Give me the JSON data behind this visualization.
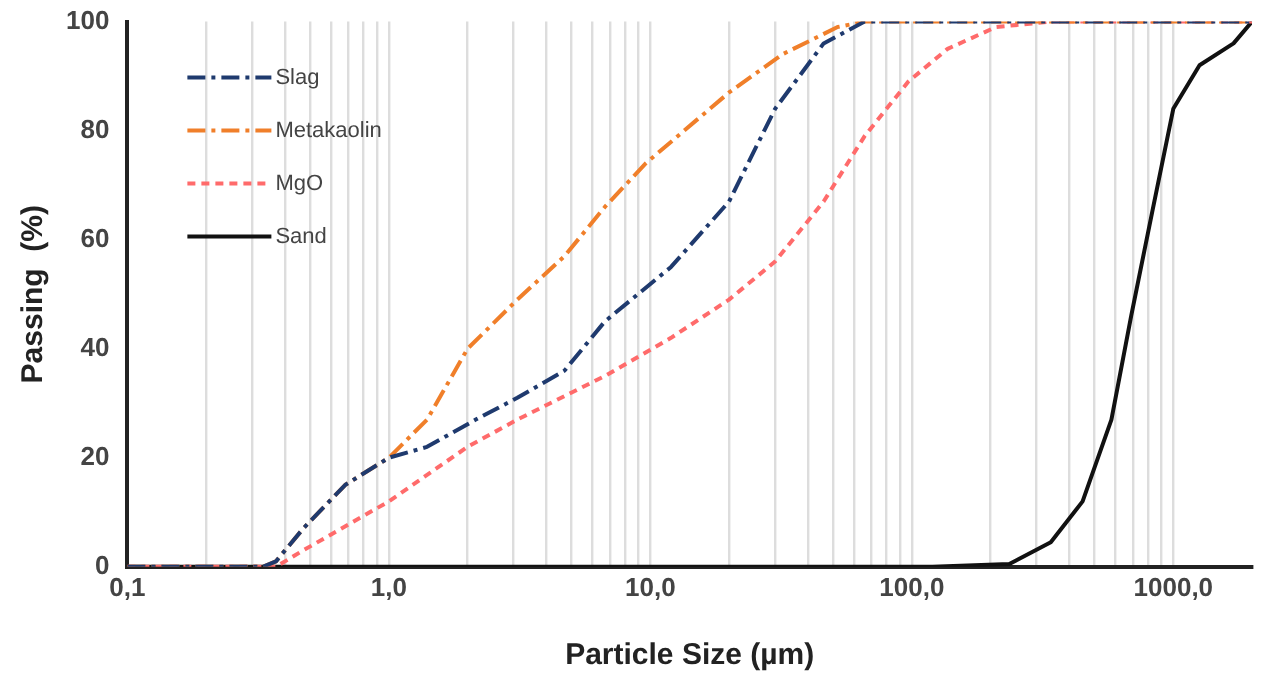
{
  "chart_data": {
    "type": "line",
    "xlabel": "Particle Size (µm)",
    "ylabel": "Passing  (%)",
    "log": "x",
    "grid": "x",
    "legend": "top left",
    "marker": "none",
    "xlim": [
      0.1,
      2000
    ],
    "ylim": [
      0,
      100
    ],
    "xticks": [
      {
        "value": 0.1,
        "label": "0,1"
      },
      {
        "value": 0.2,
        "label": null
      },
      {
        "value": 0.3,
        "label": null
      },
      {
        "value": 0.4,
        "label": null
      },
      {
        "value": 0.5,
        "label": null
      },
      {
        "value": 0.6,
        "label": null
      },
      {
        "value": 0.7,
        "label": null
      },
      {
        "value": 0.8,
        "label": null
      },
      {
        "value": 0.9,
        "label": null
      },
      {
        "value": 1,
        "label": "1,0"
      },
      {
        "value": 2,
        "label": null
      },
      {
        "value": 3,
        "label": null
      },
      {
        "value": 4,
        "label": null
      },
      {
        "value": 5,
        "label": null
      },
      {
        "value": 6,
        "label": null
      },
      {
        "value": 7,
        "label": null
      },
      {
        "value": 8,
        "label": null
      },
      {
        "value": 9,
        "label": null
      },
      {
        "value": 10,
        "label": "10,0"
      },
      {
        "value": 20,
        "label": null
      },
      {
        "value": 30,
        "label": null
      },
      {
        "value": 40,
        "label": null
      },
      {
        "value": 50,
        "label": null
      },
      {
        "value": 60,
        "label": null
      },
      {
        "value": 70,
        "label": null
      },
      {
        "value": 80,
        "label": null
      },
      {
        "value": 90,
        "label": null
      },
      {
        "value": 100,
        "label": "100,0"
      },
      {
        "value": 200,
        "label": null
      },
      {
        "value": 300,
        "label": null
      },
      {
        "value": 400,
        "label": null
      },
      {
        "value": 500,
        "label": null
      },
      {
        "value": 600,
        "label": null
      },
      {
        "value": 700,
        "label": null
      },
      {
        "value": 800,
        "label": null
      },
      {
        "value": 900,
        "label": null
      },
      {
        "value": 1000,
        "label": "1000,0"
      }
    ],
    "yticks": [
      0,
      20,
      40,
      60,
      80,
      100
    ],
    "series": [
      {
        "name": "Slag",
        "color": "#1f3a6e",
        "line_style": "dashed",
        "x": [
          0.1,
          0.33,
          0.37,
          0.47,
          0.68,
          1.0,
          1.4,
          2.15,
          3.1,
          4.7,
          6.7,
          12,
          20,
          30,
          46,
          66,
          2000
        ],
        "values": [
          0,
          0,
          1,
          7,
          15,
          20,
          22,
          27,
          31,
          36,
          45,
          55,
          67,
          84,
          96,
          100,
          100
        ]
      },
      {
        "name": "Metakaolin",
        "color": "#f07f2a",
        "line_style": "dashed",
        "x": [
          0.1,
          0.33,
          0.37,
          0.47,
          0.68,
          1.0,
          1.4,
          2.0,
          3.1,
          4.7,
          6.7,
          9.6,
          20,
          32,
          52,
          66,
          2000
        ],
        "values": [
          0,
          0,
          1,
          7,
          15,
          20,
          27,
          40,
          49,
          57,
          66,
          74,
          87,
          94,
          99,
          100,
          100
        ]
      },
      {
        "name": "MgO",
        "color": "#ff6b6b",
        "line_style": "dotted",
        "x": [
          0.1,
          0.37,
          0.47,
          1.0,
          2.0,
          3.1,
          6.7,
          12,
          20,
          30,
          46,
          66,
          97,
          137,
          210,
          340,
          2000
        ],
        "values": [
          0,
          0,
          3,
          12,
          22,
          27,
          35,
          42,
          49,
          56,
          67,
          79,
          89,
          95,
          99,
          100,
          100
        ]
      },
      {
        "name": "Sand",
        "color": "#111111",
        "line_style": "solid",
        "x": [
          0.1,
          120,
          236,
          340,
          450,
          580,
          690,
          830,
          1000,
          1260,
          1700,
          2000
        ],
        "values": [
          0,
          0,
          0.5,
          4.5,
          12,
          27,
          46,
          65,
          84,
          92,
          96,
          100
        ]
      }
    ]
  }
}
